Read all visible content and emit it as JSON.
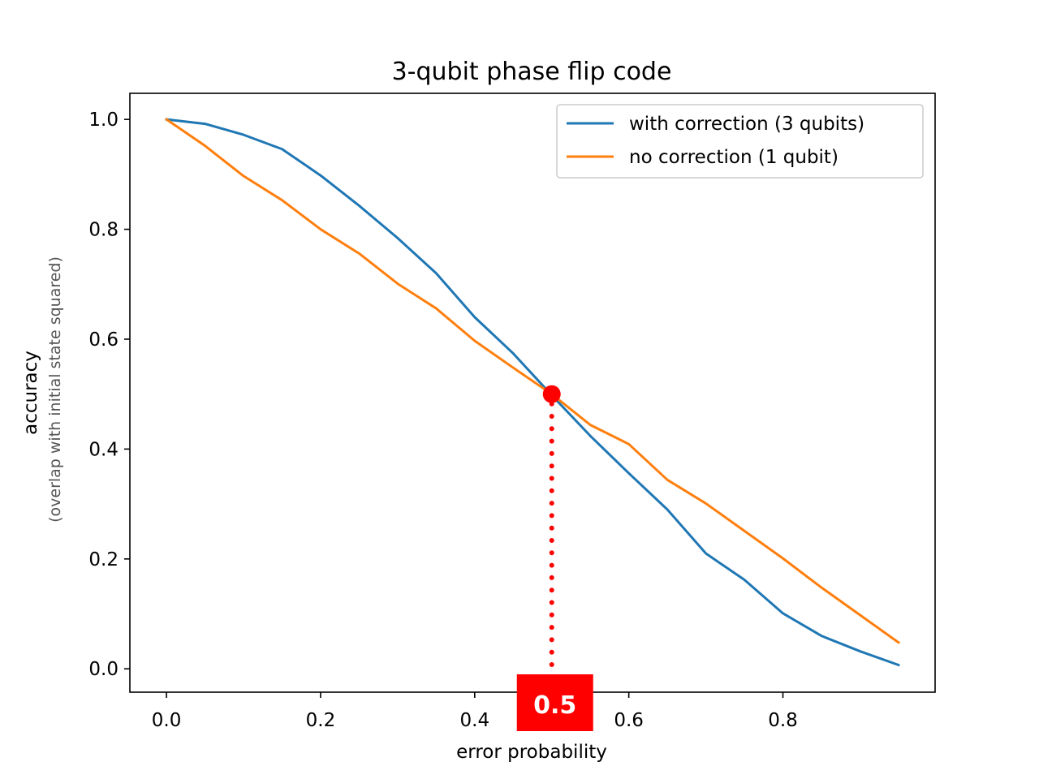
{
  "chart_data": {
    "type": "line",
    "title": "3-qubit phase flip code",
    "xlabel": "error probability",
    "ylabel": "accuracy",
    "ylabel_sub": "(overlap with initial state squared)",
    "xlim": [
      -0.0475,
      0.9975
    ],
    "ylim": [
      -0.0425,
      1.0475
    ],
    "xticks": [
      0.0,
      0.2,
      0.4,
      0.6,
      0.8
    ],
    "xtick_labels": [
      "0.0",
      "0.2",
      "0.4",
      "0.6",
      "0.8"
    ],
    "yticks": [
      0.0,
      0.2,
      0.4,
      0.6,
      0.8,
      1.0
    ],
    "ytick_labels": [
      "0.0",
      "0.2",
      "0.4",
      "0.6",
      "0.8",
      "1.0"
    ],
    "grid": false,
    "legend_position": "top-right",
    "x": [
      0.0,
      0.05,
      0.1,
      0.15,
      0.2,
      0.25,
      0.3,
      0.35,
      0.4,
      0.45,
      0.5,
      0.55,
      0.6,
      0.65,
      0.7,
      0.75,
      0.8,
      0.85,
      0.9,
      0.95
    ],
    "series": [
      {
        "name": "with correction (3 qubits)",
        "color": "#1f77b4",
        "values": [
          1.0,
          0.992,
          0.972,
          0.946,
          0.898,
          0.843,
          0.784,
          0.72,
          0.64,
          0.574,
          0.498,
          0.424,
          0.356,
          0.29,
          0.21,
          0.162,
          0.101,
          0.06,
          0.032,
          0.007
        ]
      },
      {
        "name": "no correction (1 qubit)",
        "color": "#ff7f0e",
        "values": [
          1.0,
          0.952,
          0.897,
          0.853,
          0.8,
          0.756,
          0.701,
          0.656,
          0.597,
          0.548,
          0.5,
          0.444,
          0.409,
          0.344,
          0.301,
          0.251,
          0.201,
          0.148,
          0.098,
          0.048
        ]
      }
    ],
    "annotation": {
      "x": 0.5,
      "y": 0.5,
      "label": "0.5",
      "color": "#ff0000"
    }
  }
}
